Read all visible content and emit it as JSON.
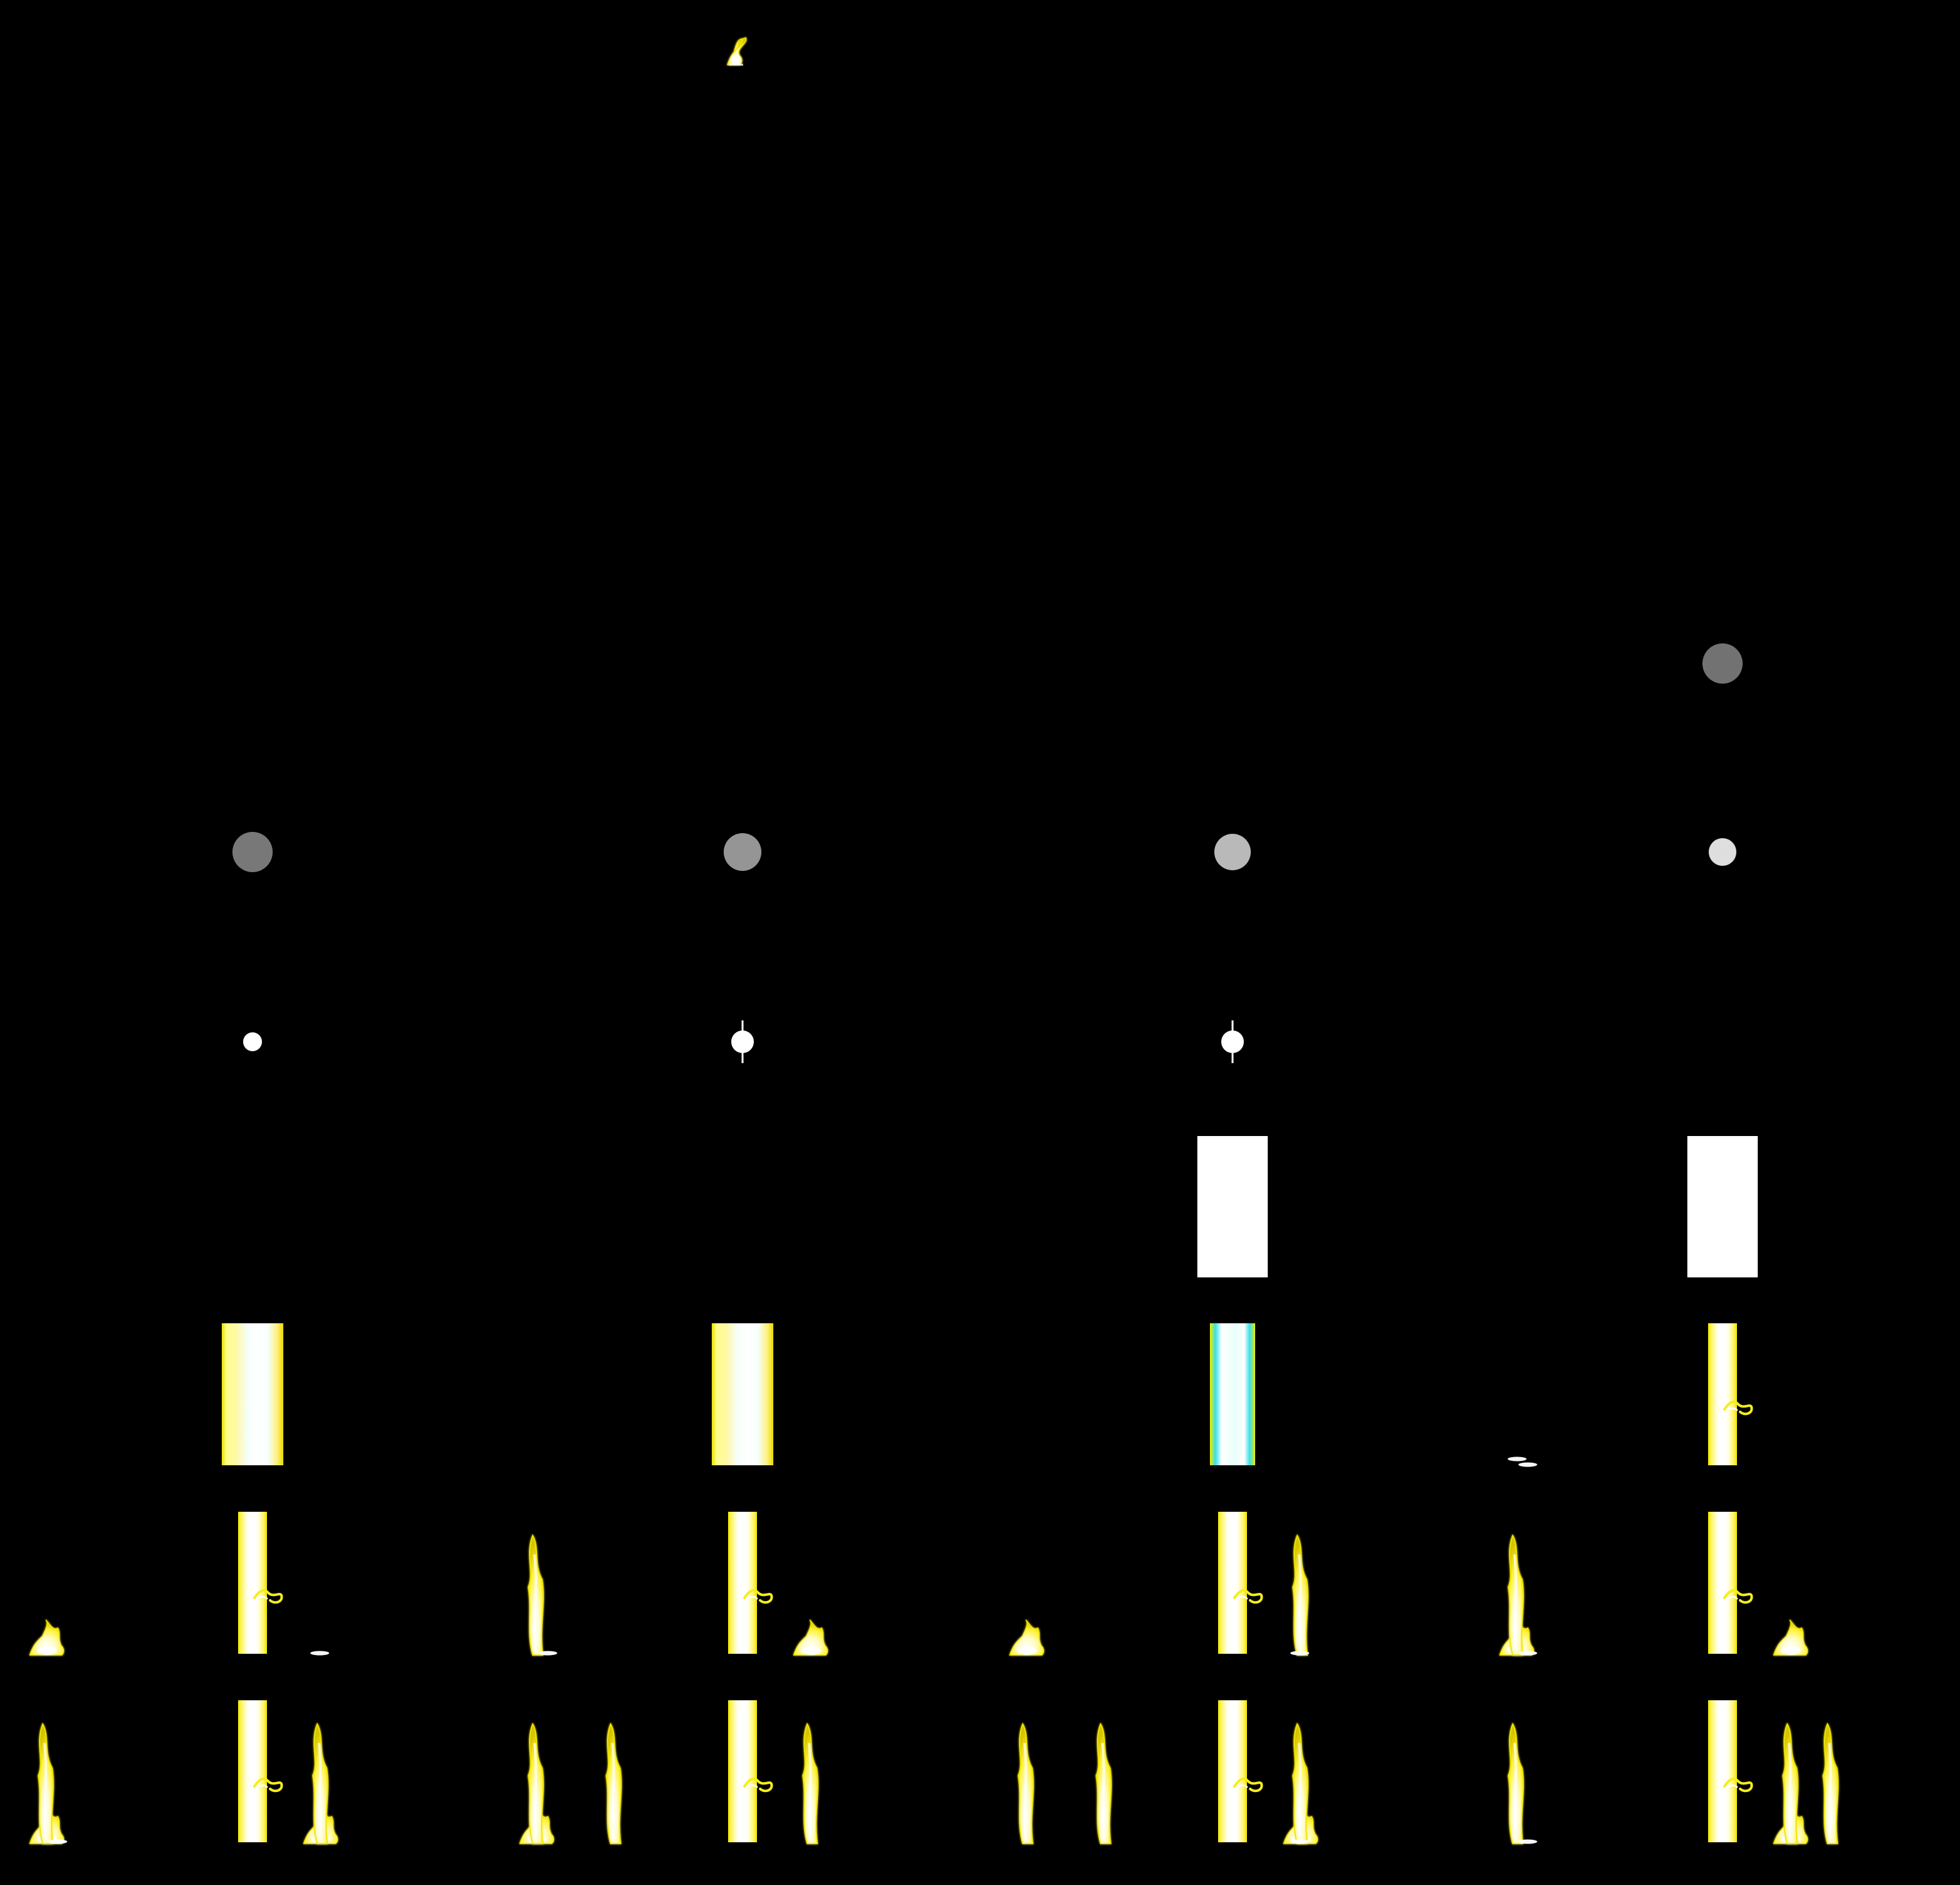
{
  "screen": {
    "background": "#000000",
    "text": []
  },
  "palette": {
    "fire_core": "#ffffff",
    "fire_mid": "#fff7a8",
    "fire_edge": "#f2e600",
    "fire_glow": "#f8ff50",
    "pillar_core": "#ffffff",
    "pillar_body": "#fffcc0",
    "pillar_edge": "#f4ee1c",
    "pillar_cyan": "#e8fffb",
    "cyan_edge": "#2fd7e3",
    "orb_row_1": "#747474",
    "orb_row_2_col_1": "#7a7a7a",
    "orb_row_2_col_2": "#989898",
    "orb_row_2_col_3": "#bdbdbd",
    "orb_row_2_col_4": "#e2e2e2",
    "white": "#ffffff"
  },
  "sprites": {
    "columns": 4,
    "rows": 10,
    "cells": [
      {
        "row": 0,
        "col": 1,
        "type": "small-flame"
      },
      {
        "row": 3,
        "col": 3,
        "type": "orb",
        "color_key": "orb_row_1"
      },
      {
        "row": 4,
        "col": 0,
        "type": "orb",
        "color_key": "orb_row_2_col_1"
      },
      {
        "row": 4,
        "col": 1,
        "type": "orb",
        "color_key": "orb_row_2_col_2"
      },
      {
        "row": 4,
        "col": 2,
        "type": "orb",
        "color_key": "orb_row_2_col_3"
      },
      {
        "row": 4,
        "col": 3,
        "type": "orb",
        "color_key": "orb_row_2_col_4"
      },
      {
        "row": 5,
        "col": 0,
        "type": "spark"
      },
      {
        "row": 5,
        "col": 1,
        "type": "spark-cross"
      },
      {
        "row": 5,
        "col": 2,
        "type": "spark-cross"
      },
      {
        "row": 6,
        "col": 2,
        "type": "white-block"
      },
      {
        "row": 6,
        "col": 3,
        "type": "white-block"
      },
      {
        "row": 7,
        "col": 0,
        "type": "wide-pillar"
      },
      {
        "row": 7,
        "col": 1,
        "type": "wide-pillar"
      },
      {
        "row": 7,
        "col": 2,
        "type": "cyan-pillar"
      },
      {
        "row": 7,
        "col": 3,
        "type": "thin-pillar",
        "curl": true,
        "ember_left": true
      },
      {
        "row": 8,
        "col": 0,
        "type": "thin-pillar",
        "curl": true,
        "side_flame_left": true,
        "ember_right": true
      },
      {
        "row": 8,
        "col": 1,
        "type": "thin-pillar",
        "curl": true,
        "tall_flame_left": true,
        "side_flame_right": true,
        "ember_left": true
      },
      {
        "row": 8,
        "col": 2,
        "type": "thin-pillar",
        "curl": true,
        "side_flame_left": true,
        "tall_flame_right": true,
        "ember_right": true
      },
      {
        "row": 8,
        "col": 3,
        "type": "thin-pillar",
        "curl": true,
        "side_flame_left": true,
        "tall_flame_left": true,
        "side_flame_right": true,
        "ember_left": true
      },
      {
        "row": 9,
        "col": 0,
        "type": "thin-pillar",
        "curl": true,
        "tall_flame_left": true,
        "side_flame_left": true,
        "tall_flame_right": true,
        "side_flame_right": true,
        "ember_left": true
      },
      {
        "row": 9,
        "col": 1,
        "type": "thin-pillar",
        "curl": true,
        "tall_flame_left": true,
        "tall_flame_left_near": true,
        "side_flame_left": true,
        "tall_flame_right": true
      },
      {
        "row": 9,
        "col": 2,
        "type": "thin-pillar",
        "curl": true,
        "tall_flame_left": true,
        "tall_flame_left_near": true,
        "tall_flame_right": true,
        "side_flame_right": true,
        "ember_right": true
      },
      {
        "row": 9,
        "col": 3,
        "type": "thin-pillar",
        "curl": true,
        "tall_flame_left": true,
        "tall_flame_right": true,
        "tall_flame_right_far": true,
        "side_flame_right": true,
        "ember_left": true
      }
    ]
  }
}
